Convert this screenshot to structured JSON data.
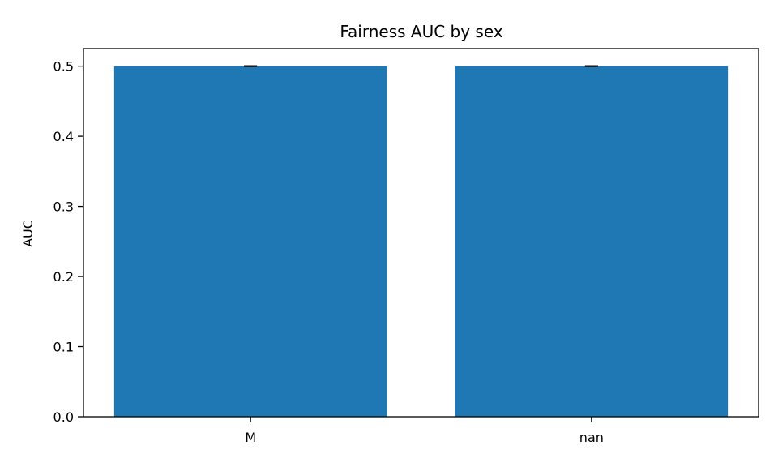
{
  "chart_data": {
    "type": "bar",
    "title": "Fairness AUC by sex",
    "xlabel": "",
    "ylabel": "AUC",
    "categories": [
      "M",
      "nan"
    ],
    "values": [
      0.5,
      0.5
    ],
    "error": [
      0.0,
      0.0
    ],
    "ylim": [
      0,
      0.525
    ],
    "yticks": [
      0.0,
      0.1,
      0.2,
      0.3,
      0.4,
      0.5
    ],
    "ytick_labels": [
      "0.0",
      "0.1",
      "0.2",
      "0.3",
      "0.4",
      "0.5"
    ],
    "grid": false,
    "bar_color": "#1f77b4",
    "errorbar_color": "#000000"
  }
}
